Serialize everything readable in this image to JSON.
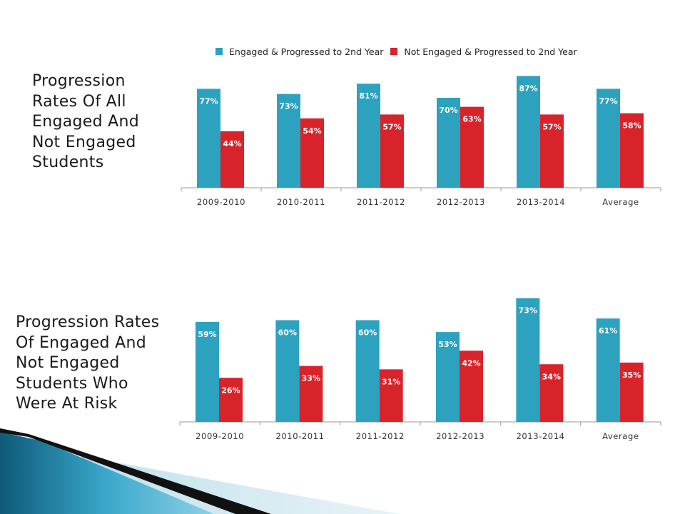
{
  "colors": {
    "engaged": "#2ca2bf",
    "not_engaged": "#d9232b",
    "axis": "#9a9a9a"
  },
  "legend": {
    "series1": "Engaged & Progressed to 2nd Year",
    "series2": "Not Engaged & Progressed to 2nd Year"
  },
  "titles": {
    "chart1": [
      "Progression",
      "Rates Of All",
      "Engaged And",
      "Not Engaged",
      "Students"
    ],
    "chart2": [
      "Progression Rates",
      "Of Engaged And",
      "Not Engaged",
      "Students Who",
      "Were At Risk"
    ]
  },
  "chart_data": [
    {
      "type": "bar",
      "categories": [
        "2009-2010",
        "2010-2011",
        "2011-2012",
        "2012-2013",
        "2013-2014",
        "Average"
      ],
      "series": [
        {
          "name": "Engaged & Progressed to 2nd Year",
          "values": [
            77,
            73,
            81,
            70,
            87,
            77
          ],
          "labels": [
            "77%",
            "73%",
            "81%",
            "70%",
            "87%",
            "77%"
          ]
        },
        {
          "name": "Not Engaged & Progressed to 2nd Year",
          "values": [
            44,
            54,
            57,
            63,
            57,
            58
          ],
          "labels": [
            "44%",
            "54%",
            "57%",
            "63%",
            "57%",
            "58%"
          ]
        }
      ],
      "ylim": [
        0,
        100
      ],
      "grid": false,
      "legend": "top"
    },
    {
      "type": "bar",
      "categories": [
        "2009-2010",
        "2010-2011",
        "2011-2012",
        "2012-2013",
        "2013-2014",
        "Average"
      ],
      "series": [
        {
          "name": "Engaged & Progressed to 2nd Year",
          "values": [
            59,
            60,
            60,
            53,
            73,
            61
          ],
          "labels": [
            "59%",
            "60%",
            "60%",
            "53%",
            "73%",
            "61%"
          ]
        },
        {
          "name": "Not Engaged & Progressed to 2nd Year",
          "values": [
            26,
            33,
            31,
            42,
            34,
            35
          ],
          "labels": [
            "26%",
            "33%",
            "31%",
            "42%",
            "34%",
            "35%"
          ]
        }
      ],
      "ylim": [
        0,
        80
      ],
      "grid": false,
      "legend": "none"
    }
  ]
}
